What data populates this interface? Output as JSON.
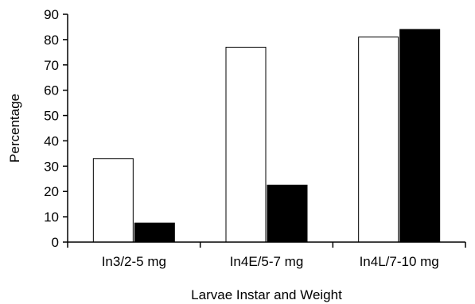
{
  "chart_data": {
    "type": "bar",
    "categories": [
      "In3/2-5 mg",
      "In4E/5-7 mg",
      "In4L/7-10 mg"
    ],
    "series": [
      {
        "values": [
          33,
          77,
          81
        ],
        "color": "#ffffff"
      },
      {
        "values": [
          7.5,
          22.5,
          84
        ],
        "color": "#000000"
      }
    ],
    "xlabel": "Larvae Instar and Weight",
    "ylabel": "Percentage",
    "ylim": [
      0,
      90
    ],
    "yticks": [
      0,
      10,
      20,
      30,
      40,
      50,
      60,
      70,
      80,
      90
    ],
    "grid": false,
    "legend": "none"
  }
}
